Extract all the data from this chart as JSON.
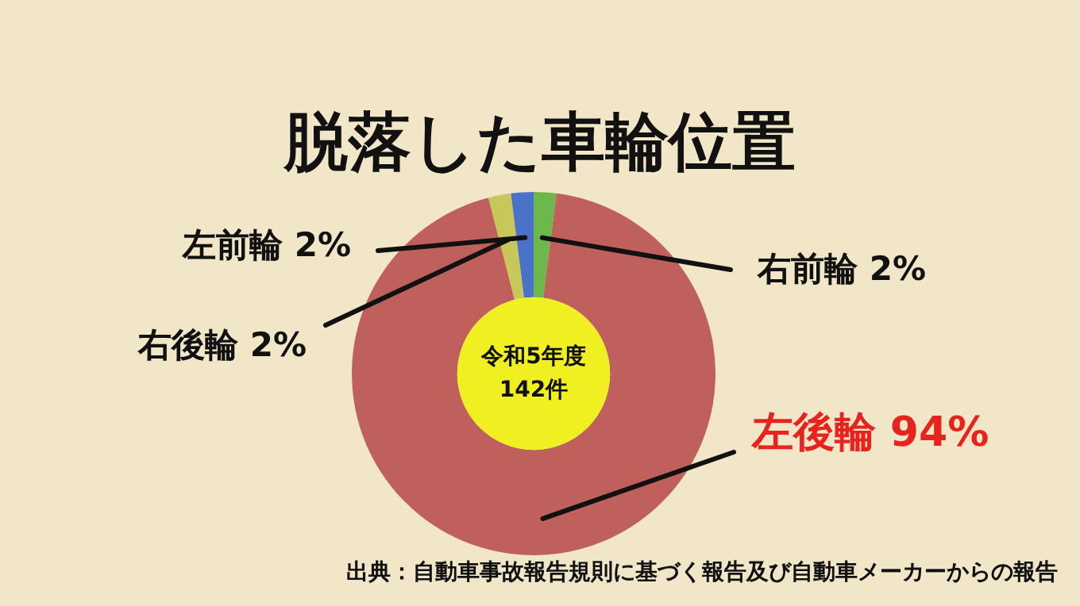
{
  "chart_data": {
    "type": "donut",
    "title": "脱落した車輪位置",
    "categories": [
      "右前輪",
      "左後輪",
      "右後輪",
      "左前輪"
    ],
    "values": [
      2,
      94,
      2,
      2
    ],
    "value_labels": [
      "2%",
      "94%",
      "2%",
      "2%"
    ],
    "colors": [
      "#6cb84a",
      "#c0605c",
      "#c8c85a",
      "#4a72c8"
    ],
    "legend": false,
    "annotations": [
      "令和5年度",
      "142件",
      "出典：自動車事故報告規則に基づく報告及び自動車メーカーからの報告"
    ]
  }
}
